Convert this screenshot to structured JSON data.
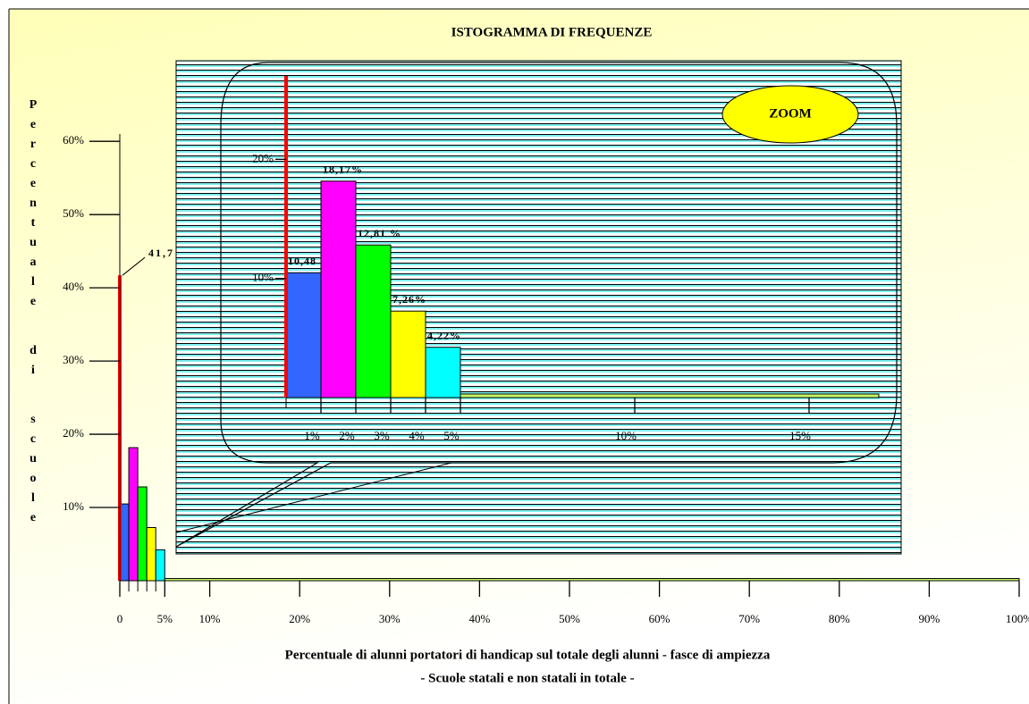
{
  "chart_data": [
    {
      "type": "histogram",
      "title": "ISTOGRAMMA DI FREQUENZE",
      "ylabel": "Percentuale di scuole",
      "xlabel": "Percentuale di alunni portatori di handicap sul totale degli alunni - fasce di ampiezza",
      "subtitle": "- Scuole statali e non statali in totale -",
      "zero_value": 41.7,
      "zero_value_label": "41,7",
      "zero_color": "#ff0000",
      "bins": [
        0,
        1,
        2,
        3,
        4,
        5,
        100
      ],
      "values": [
        10.48,
        18.17,
        12.81,
        7.26,
        4.22,
        0.3
      ],
      "colors": [
        "#3366ff",
        "#ff00ff",
        "#00ff00",
        "#ffff00",
        "#00ffff",
        "#ccff66"
      ],
      "xlim": [
        0,
        100
      ],
      "xticks": [
        {
          "value": 0,
          "label": "0"
        },
        {
          "value": 5,
          "label": "5%"
        },
        {
          "value": 10,
          "label": "10%"
        },
        {
          "value": 20,
          "label": "20%"
        },
        {
          "value": 30,
          "label": "30%"
        },
        {
          "value": 40,
          "label": "40%"
        },
        {
          "value": 50,
          "label": "50%"
        },
        {
          "value": 60,
          "label": "60%"
        },
        {
          "value": 70,
          "label": "70%"
        },
        {
          "value": 80,
          "label": "80%"
        },
        {
          "value": 90,
          "label": "90%"
        },
        {
          "value": 100,
          "label": "100%"
        }
      ],
      "xticks_minor": [
        1,
        2,
        3,
        4
      ],
      "ylim": [
        0,
        61
      ],
      "yticks": [
        {
          "value": 10,
          "label": "10%"
        },
        {
          "value": 20,
          "label": "20%"
        },
        {
          "value": 30,
          "label": "30%"
        },
        {
          "value": 40,
          "label": "40%"
        },
        {
          "value": 50,
          "label": "50%"
        },
        {
          "value": 60,
          "label": "60%"
        }
      ]
    },
    {
      "type": "histogram",
      "title": "ZOOM",
      "zero_value": 41.7,
      "zero_color": "#ff0000",
      "bins": [
        0,
        1,
        2,
        3,
        4,
        5,
        17
      ],
      "values": [
        10.48,
        18.17,
        12.81,
        7.26,
        4.22,
        0.3
      ],
      "value_labels": [
        "10,48 %",
        "18,17%",
        "12,81 %",
        "7,26%",
        "4,22%",
        null
      ],
      "colors": [
        "#3366ff",
        "#ff00ff",
        "#00ff00",
        "#ffff00",
        "#00ffff",
        "#ccff66"
      ],
      "xlim": [
        0,
        17
      ],
      "xticks": [
        {
          "value": 1,
          "label": "1%"
        },
        {
          "value": 2,
          "label": "2%"
        },
        {
          "value": 3,
          "label": "3%"
        },
        {
          "value": 4,
          "label": "4%"
        },
        {
          "value": 5,
          "label": "5%"
        },
        {
          "value": 10,
          "label": "10%"
        },
        {
          "value": 15,
          "label": "15%"
        }
      ],
      "xticks_minor": [
        0
      ],
      "ylim": [
        0,
        27
      ],
      "yticks": [
        {
          "value": 10,
          "label": "10%"
        },
        {
          "value": 20,
          "label": "20%"
        }
      ]
    }
  ]
}
